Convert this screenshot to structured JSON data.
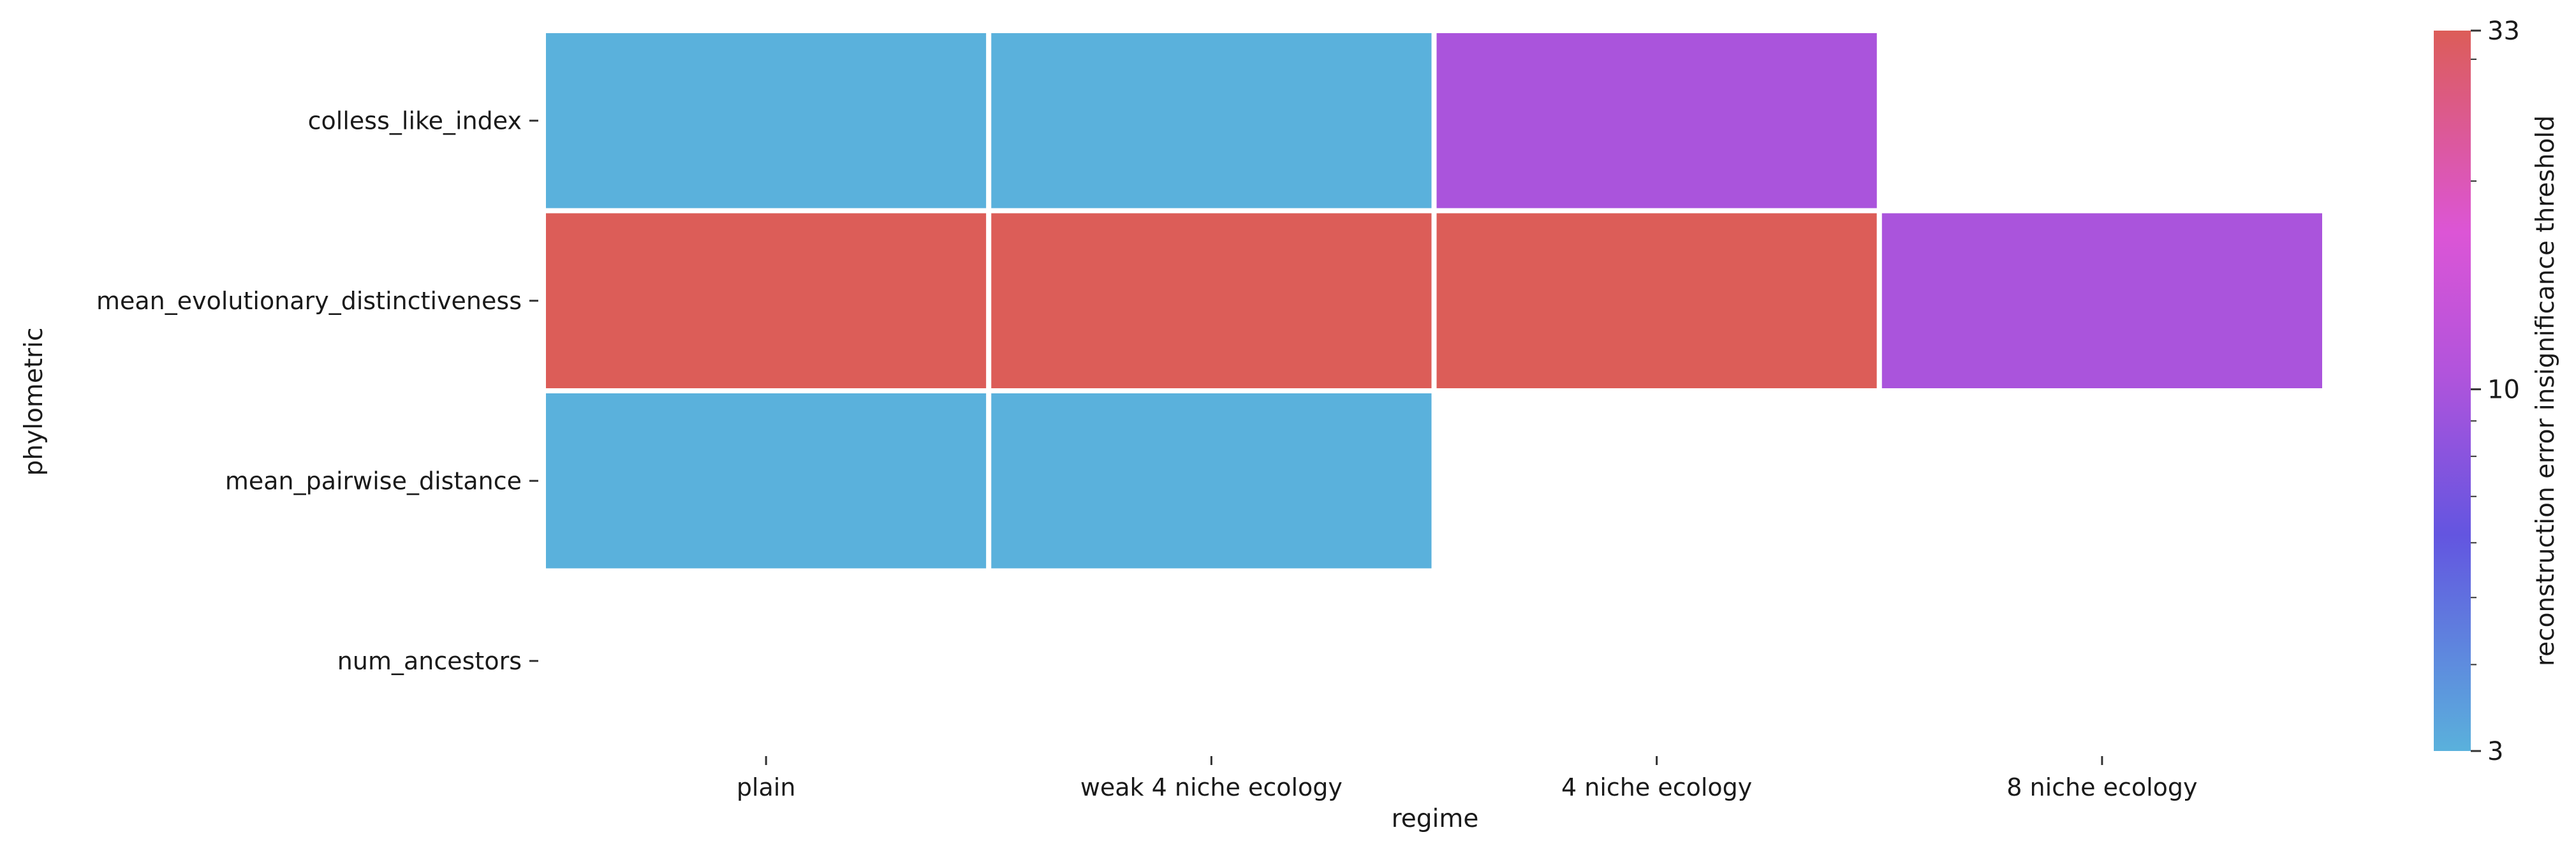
{
  "chart_data": {
    "type": "heatmap",
    "xlabel": "regime",
    "ylabel": "phylometric",
    "x_categories": [
      "plain",
      "weak 4 niche ecology",
      "4 niche ecology",
      "8 niche ecology"
    ],
    "y_categories": [
      "colless_like_index",
      "mean_evolutionary_distinctiveness",
      "mean_pairwise_distance",
      "num_ancestors"
    ],
    "values": [
      [
        3,
        3,
        10,
        null
      ],
      [
        33,
        33,
        33,
        10
      ],
      [
        3,
        3,
        null,
        null
      ],
      [
        null,
        null,
        null,
        null
      ]
    ],
    "colorbar": {
      "label": "reconstruction error insignificance threshold",
      "scale": "log",
      "range": [
        3,
        33
      ],
      "ticks": [
        3,
        10,
        33
      ],
      "colors": {
        "low": "#5ab1dc",
        "mid_low": "#6355e0",
        "mid": "#b054dc",
        "mid_high": "#dc55d6",
        "high": "#dc5d58"
      }
    },
    "grid": false,
    "missing_cells": "blank"
  }
}
